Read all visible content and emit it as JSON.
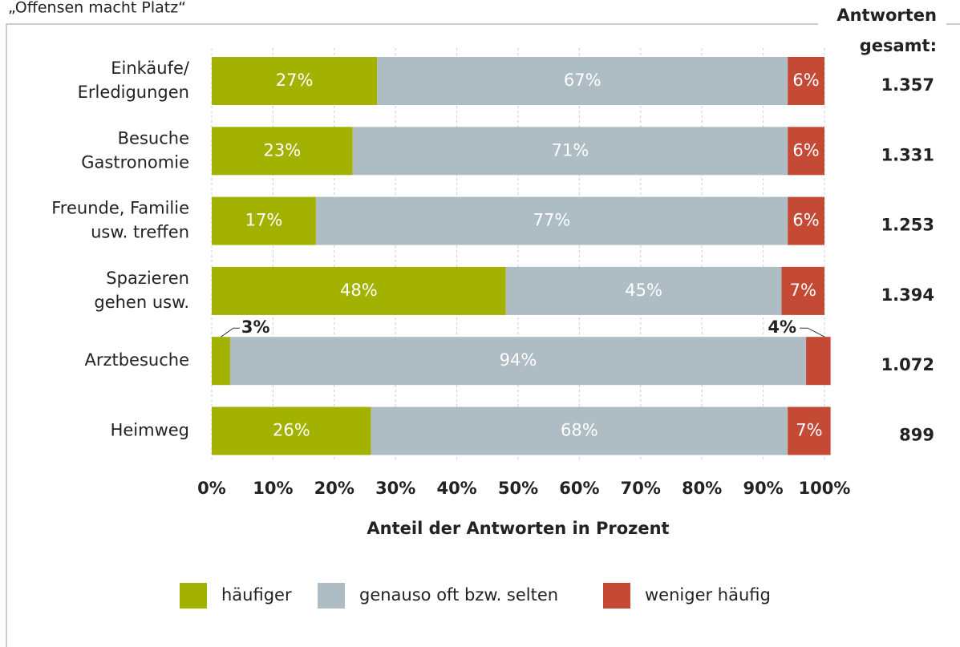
{
  "chart_data": {
    "type": "stacked_barh",
    "subtitle": "„Offensen macht Platz“",
    "categories": [
      [
        "Einkäufe/",
        "Erledigungen"
      ],
      [
        "Besuche",
        "Gastronomie"
      ],
      [
        "Freunde, Familie",
        "usw. treffen"
      ],
      [
        "Spazieren",
        "gehen usw."
      ],
      [
        "Arztbesuche"
      ],
      [
        "Heimweg"
      ]
    ],
    "series": [
      {
        "name": "häufiger",
        "color": "#a3b100",
        "values": [
          27,
          23,
          17,
          48,
          3,
          26
        ],
        "value_labels": [
          "27%",
          "23%",
          "17%",
          "48%",
          "3%",
          "26%"
        ]
      },
      {
        "name": "genauso oft bzw. selten",
        "color": "#aebcc3",
        "values": [
          67,
          71,
          77,
          45,
          94,
          68
        ],
        "value_labels": [
          "67%",
          "71%",
          "77%",
          "45%",
          "94%",
          "68%"
        ]
      },
      {
        "name": "weniger häufig",
        "color": "#c44a36",
        "values": [
          6,
          6,
          6,
          7,
          4,
          7
        ],
        "value_labels": [
          "6%",
          "6%",
          "6%",
          "7%",
          "4%",
          "7%"
        ]
      }
    ],
    "xlim": [
      0,
      100
    ],
    "xticks": [
      {
        "value": 0,
        "label": "0%"
      },
      {
        "value": 10,
        "label": "10%"
      },
      {
        "value": 20,
        "label": "20%"
      },
      {
        "value": 30,
        "label": "30%"
      },
      {
        "value": 40,
        "label": "40%"
      },
      {
        "value": 50,
        "label": "50%"
      },
      {
        "value": 60,
        "label": "60%"
      },
      {
        "value": 70,
        "label": "70%"
      },
      {
        "value": 80,
        "label": "80%"
      },
      {
        "value": 90,
        "label": "90%"
      },
      {
        "value": 100,
        "label": "100%"
      }
    ],
    "xlabel": "Anteil der Antworten in Prozent",
    "grid": true,
    "totals": {
      "title": [
        "Antworten",
        "gesamt:"
      ],
      "values": [
        1357,
        1331,
        1253,
        1394,
        1072,
        899
      ],
      "value_labels": [
        "1.357",
        "1.331",
        "1.253",
        "1.394",
        "1.072",
        "899"
      ]
    }
  }
}
